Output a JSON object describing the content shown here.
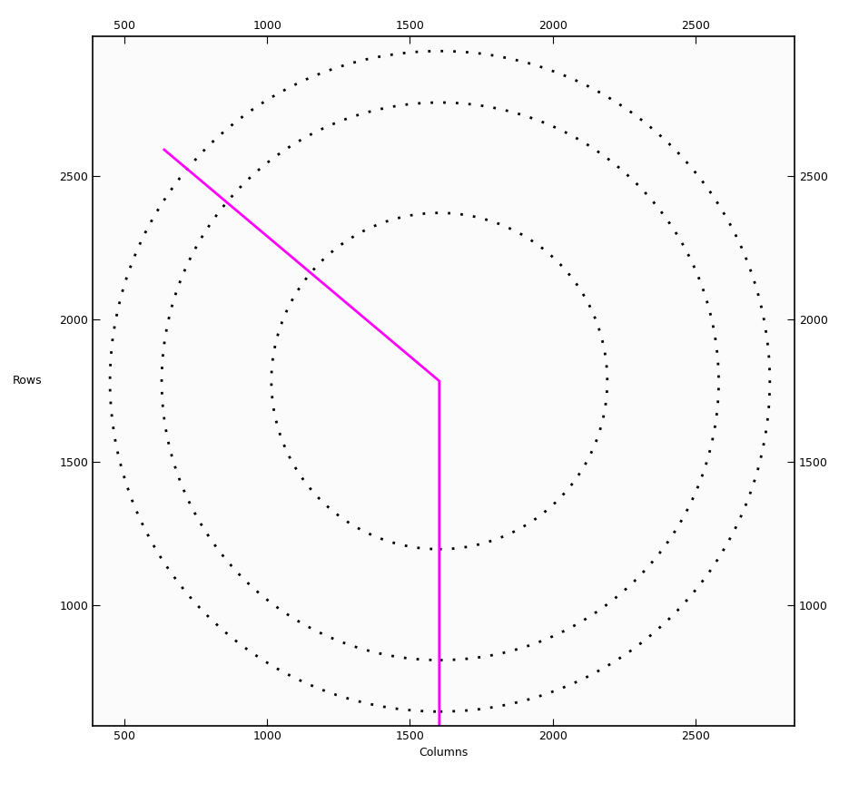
{
  "chart_data": {
    "type": "diffraction_image",
    "x_label": "Columns",
    "y_label": "Rows",
    "xlim": [
      389,
      2847
    ],
    "ylim": [
      578,
      2988
    ],
    "xticks": [
      500,
      1000,
      1500,
      2000,
      2500
    ],
    "yticks": [
      1000,
      1500,
      2000,
      2500
    ],
    "color": "#000000",
    "rings": [
      {
        "center": [
          1603,
          1783
        ],
        "radius": 588
      },
      {
        "center": [
          1606,
          1782
        ],
        "radius": 975
      },
      {
        "center": [
          1605,
          1782
        ],
        "radius": 1155
      }
    ],
    "lines": [
      {
        "x": [
          640,
          1603,
          1603
        ],
        "y": [
          2592,
          1783,
          578
        ],
        "color": "#ff00ff"
      }
    ]
  }
}
